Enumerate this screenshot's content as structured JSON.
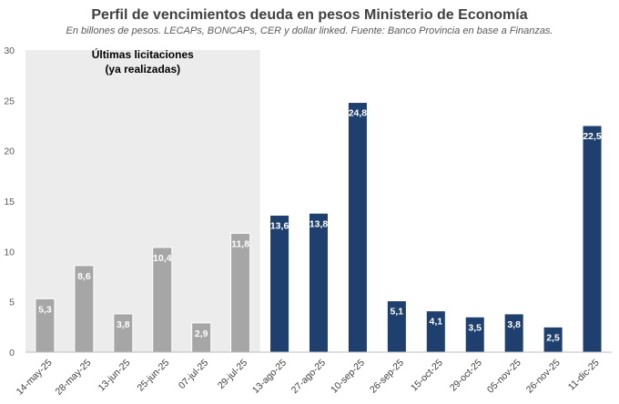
{
  "chart_data": {
    "type": "bar",
    "title": "Perfil de vencimientos deuda en pesos Ministerio de Economía",
    "subtitle": "En billones de pesos. LECAPs, BONCAPs, CER y dollar linked. Fuente: Banco Provincia en base a Finanzas.",
    "xlabel": "",
    "ylabel": "",
    "ylim": [
      0,
      30
    ],
    "yticks": [
      0,
      5,
      10,
      15,
      20,
      25,
      30
    ],
    "grid": false,
    "categories": [
      "14-may-25",
      "28-may-25",
      "13-jun-25",
      "25-jun-25",
      "07-jul-25",
      "29-jul-25",
      "13-ago-25",
      "27-ago-25",
      "10-sep-25",
      "26-sep-25",
      "15-oct-25",
      "29-oct-25",
      "05-nov-25",
      "26-nov-25",
      "11-dic-25"
    ],
    "values": [
      5.3,
      8.6,
      3.8,
      10.4,
      2.9,
      11.8,
      13.6,
      13.8,
      24.8,
      5.1,
      4.1,
      3.5,
      3.8,
      2.5,
      22.5
    ],
    "value_labels": [
      "5,3",
      "8,6",
      "3,8",
      "10,4",
      "2,9",
      "11,8",
      "13,6",
      "13,8",
      "24,8",
      "5,1",
      "4,1",
      "3,5",
      "3,8",
      "2,5",
      "22,5"
    ],
    "highlight": {
      "label_line1": "Últimas licitaciones",
      "label_line2": "(ya realizadas)",
      "categories": [
        "14-may-25",
        "28-may-25",
        "13-jun-25",
        "25-jun-25",
        "07-jul-25",
        "29-jul-25"
      ],
      "shade_color": "#ececec"
    },
    "colors": {
      "past": "#a6a6a6",
      "future": "#1f3f6e",
      "axis": "#bfbfbf"
    }
  }
}
